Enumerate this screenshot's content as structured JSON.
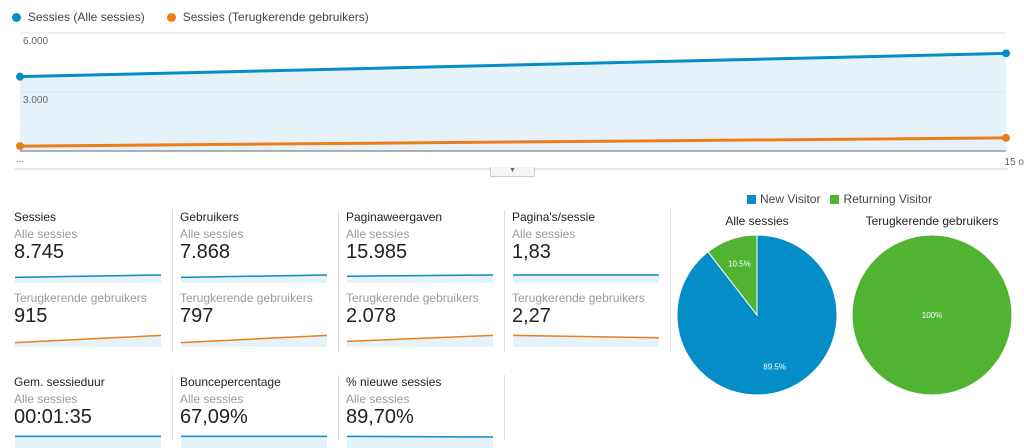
{
  "chart_data": [
    {
      "type": "line",
      "x": [
        "...",
        "15 o"
      ],
      "series": [
        {
          "name": "Sessies (Alle sessies)",
          "color": "#058dc7",
          "values": [
            3780,
            4965
          ]
        },
        {
          "name": "Sessies (Terugkerende gebruikers)",
          "color": "#ed7e17",
          "values": [
            250,
            665
          ]
        }
      ],
      "y_ticks": [
        "6.000",
        "3.000"
      ],
      "ylim": [
        0,
        6000
      ],
      "grid": true,
      "area_fill": "#e6f2fa",
      "legend": "top-left"
    },
    {
      "type": "pie",
      "title": "Alle sessies",
      "categories": [
        "New Visitor",
        "Returning Visitor"
      ],
      "values": [
        89.5,
        10.5
      ],
      "labels": [
        "89.5%",
        "10.5%"
      ],
      "colors": [
        "#058dc7",
        "#50b432"
      ]
    },
    {
      "type": "pie",
      "title": "Terugkerende gebruikers",
      "categories": [
        "New Visitor",
        "Returning Visitor"
      ],
      "values": [
        0,
        100
      ],
      "labels": [
        "",
        "100%"
      ],
      "colors": [
        "#058dc7",
        "#50b432"
      ]
    }
  ],
  "pie_legend": [
    "New Visitor",
    "Returning Visitor"
  ],
  "metrics": [
    {
      "title": "Sessies",
      "seg1": "Alle sessies",
      "val1": "8.745",
      "seg2": "Terugkerende gebruikers",
      "val2": "915",
      "trend1": [
        0.3,
        0.5
      ],
      "trend2": [
        0.2,
        0.8
      ]
    },
    {
      "title": "Gebruikers",
      "seg1": "Alle sessies",
      "val1": "7.868",
      "seg2": "Terugkerende gebruikers",
      "val2": "797",
      "trend1": [
        0.3,
        0.5
      ],
      "trend2": [
        0.2,
        0.8
      ]
    },
    {
      "title": "Paginaweergaven",
      "seg1": "Alle sessies",
      "val1": "15.985",
      "seg2": "Terugkerende gebruikers",
      "val2": "2.078",
      "trend1": [
        0.4,
        0.5
      ],
      "trend2": [
        0.3,
        0.8
      ]
    },
    {
      "title": "Pagina's/sessie",
      "seg1": "Alle sessies",
      "val1": "1,83",
      "seg2": "Terugkerende gebruikers",
      "val2": "2,27",
      "trend1": [
        0.5,
        0.5
      ],
      "trend2": [
        0.8,
        0.6
      ]
    },
    {
      "title": "Gem. sessieduur",
      "seg1": "Alle sessies",
      "val1": "00:01:35",
      "trend1": [
        0.8,
        0.8
      ]
    },
    {
      "title": "Bouncepercentage",
      "seg1": "Alle sessies",
      "val1": "67,09%",
      "trend1": [
        0.8,
        0.8
      ]
    },
    {
      "title": "% nieuwe sessies",
      "seg1": "Alle sessies",
      "val1": "89,70%",
      "trend1": [
        0.8,
        0.75
      ]
    }
  ],
  "toggle_icon": "caret-down-icon"
}
